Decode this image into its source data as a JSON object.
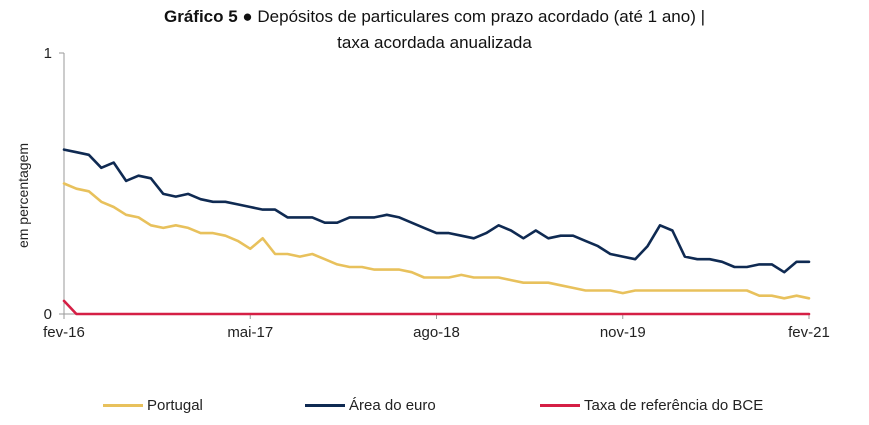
{
  "title": {
    "lead": "Gráfico 5 ●",
    "text_line1": "Depósitos de particulares com prazo acordado (até 1 ano) |",
    "text_line2": "taxa acordada anualizada"
  },
  "colors": {
    "portugal": "#E8C15C",
    "area_euro": "#0F2A52",
    "bce": "#D51F45",
    "axis": "#9a9a9a"
  },
  "chart_data": {
    "type": "line",
    "title": "Gráfico 5 ● Depósitos de particulares com prazo acordado (até 1 ano) | taxa acordada anualizada",
    "ylabel": "em percentagem",
    "xlabel": "",
    "ylim": [
      0,
      1
    ],
    "yticks": [
      "0",
      "1"
    ],
    "x_tick_labels": [
      "fev-16",
      "mai-17",
      "ago-18",
      "nov-19",
      "fev-21"
    ],
    "x_start": "fev-16",
    "x_end": "fev-21",
    "n_months": 61,
    "grid": false,
    "legend_position": "bottom",
    "series": [
      {
        "name": "Portugal",
        "color_key": "portugal",
        "values": [
          0.5,
          0.48,
          0.47,
          0.43,
          0.41,
          0.38,
          0.37,
          0.34,
          0.33,
          0.34,
          0.33,
          0.31,
          0.31,
          0.3,
          0.28,
          0.25,
          0.29,
          0.23,
          0.23,
          0.22,
          0.23,
          0.21,
          0.19,
          0.18,
          0.18,
          0.17,
          0.17,
          0.17,
          0.16,
          0.14,
          0.14,
          0.14,
          0.15,
          0.14,
          0.14,
          0.14,
          0.13,
          0.12,
          0.12,
          0.12,
          0.11,
          0.1,
          0.09,
          0.09,
          0.09,
          0.08,
          0.09,
          0.09,
          0.09,
          0.09,
          0.09,
          0.09,
          0.09,
          0.09,
          0.09,
          0.09,
          0.07,
          0.07,
          0.06,
          0.07,
          0.06
        ]
      },
      {
        "name": "Área do euro",
        "color_key": "area_euro",
        "values": [
          0.63,
          0.62,
          0.61,
          0.56,
          0.58,
          0.51,
          0.53,
          0.52,
          0.46,
          0.45,
          0.46,
          0.44,
          0.43,
          0.43,
          0.42,
          0.41,
          0.4,
          0.4,
          0.37,
          0.37,
          0.37,
          0.35,
          0.35,
          0.37,
          0.37,
          0.37,
          0.38,
          0.37,
          0.35,
          0.33,
          0.31,
          0.31,
          0.3,
          0.29,
          0.31,
          0.34,
          0.32,
          0.29,
          0.32,
          0.29,
          0.3,
          0.3,
          0.28,
          0.26,
          0.23,
          0.22,
          0.21,
          0.26,
          0.34,
          0.32,
          0.22,
          0.21,
          0.21,
          0.2,
          0.18,
          0.18,
          0.19,
          0.19,
          0.16,
          0.2,
          0.2
        ]
      },
      {
        "name": "Taxa de referência do BCE",
        "color_key": "bce",
        "values": [
          0.05,
          0.0,
          0.0,
          0.0,
          0.0,
          0.0,
          0.0,
          0.0,
          0.0,
          0.0,
          0.0,
          0.0,
          0.0,
          0.0,
          0.0,
          0.0,
          0.0,
          0.0,
          0.0,
          0.0,
          0.0,
          0.0,
          0.0,
          0.0,
          0.0,
          0.0,
          0.0,
          0.0,
          0.0,
          0.0,
          0.0,
          0.0,
          0.0,
          0.0,
          0.0,
          0.0,
          0.0,
          0.0,
          0.0,
          0.0,
          0.0,
          0.0,
          0.0,
          0.0,
          0.0,
          0.0,
          0.0,
          0.0,
          0.0,
          0.0,
          0.0,
          0.0,
          0.0,
          0.0,
          0.0,
          0.0,
          0.0,
          0.0,
          0.0,
          0.0,
          0.0
        ]
      }
    ]
  }
}
